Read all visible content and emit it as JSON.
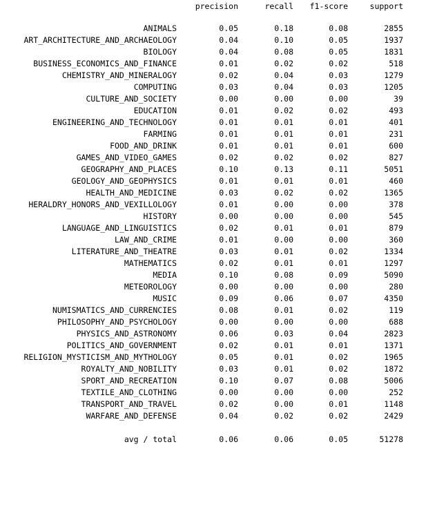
{
  "header": {
    "precision": "precision",
    "recall": "recall",
    "f1": "f1-score",
    "support": "support"
  },
  "rows": [
    {
      "label": "ANIMALS",
      "precision": "0.05",
      "recall": "0.18",
      "f1": "0.08",
      "support": "2855"
    },
    {
      "label": "ART_ARCHITECTURE_AND_ARCHAEOLOGY",
      "precision": "0.04",
      "recall": "0.10",
      "f1": "0.05",
      "support": "1937"
    },
    {
      "label": "BIOLOGY",
      "precision": "0.04",
      "recall": "0.08",
      "f1": "0.05",
      "support": "1831"
    },
    {
      "label": "BUSINESS_ECONOMICS_AND_FINANCE",
      "precision": "0.01",
      "recall": "0.02",
      "f1": "0.02",
      "support": "518"
    },
    {
      "label": "CHEMISTRY_AND_MINERALOGY",
      "precision": "0.02",
      "recall": "0.04",
      "f1": "0.03",
      "support": "1279"
    },
    {
      "label": "COMPUTING",
      "precision": "0.03",
      "recall": "0.04",
      "f1": "0.03",
      "support": "1205"
    },
    {
      "label": "CULTURE_AND_SOCIETY",
      "precision": "0.00",
      "recall": "0.00",
      "f1": "0.00",
      "support": "39"
    },
    {
      "label": "EDUCATION",
      "precision": "0.01",
      "recall": "0.02",
      "f1": "0.02",
      "support": "493"
    },
    {
      "label": "ENGINEERING_AND_TECHNOLOGY",
      "precision": "0.01",
      "recall": "0.01",
      "f1": "0.01",
      "support": "401"
    },
    {
      "label": "FARMING",
      "precision": "0.01",
      "recall": "0.01",
      "f1": "0.01",
      "support": "231"
    },
    {
      "label": "FOOD_AND_DRINK",
      "precision": "0.01",
      "recall": "0.01",
      "f1": "0.01",
      "support": "600"
    },
    {
      "label": "GAMES_AND_VIDEO_GAMES",
      "precision": "0.02",
      "recall": "0.02",
      "f1": "0.02",
      "support": "827"
    },
    {
      "label": "GEOGRAPHY_AND_PLACES",
      "precision": "0.10",
      "recall": "0.13",
      "f1": "0.11",
      "support": "5051"
    },
    {
      "label": "GEOLOGY_AND_GEOPHYSICS",
      "precision": "0.01",
      "recall": "0.01",
      "f1": "0.01",
      "support": "460"
    },
    {
      "label": "HEALTH_AND_MEDICINE",
      "precision": "0.03",
      "recall": "0.02",
      "f1": "0.02",
      "support": "1365"
    },
    {
      "label": "HERALDRY_HONORS_AND_VEXILLOLOGY",
      "precision": "0.01",
      "recall": "0.00",
      "f1": "0.00",
      "support": "378"
    },
    {
      "label": "HISTORY",
      "precision": "0.00",
      "recall": "0.00",
      "f1": "0.00",
      "support": "545"
    },
    {
      "label": "LANGUAGE_AND_LINGUISTICS",
      "precision": "0.02",
      "recall": "0.01",
      "f1": "0.01",
      "support": "879"
    },
    {
      "label": "LAW_AND_CRIME",
      "precision": "0.01",
      "recall": "0.00",
      "f1": "0.00",
      "support": "360"
    },
    {
      "label": "LITERATURE_AND_THEATRE",
      "precision": "0.03",
      "recall": "0.01",
      "f1": "0.02",
      "support": "1334"
    },
    {
      "label": "MATHEMATICS",
      "precision": "0.02",
      "recall": "0.01",
      "f1": "0.01",
      "support": "1297"
    },
    {
      "label": "MEDIA",
      "precision": "0.10",
      "recall": "0.08",
      "f1": "0.09",
      "support": "5090"
    },
    {
      "label": "METEOROLOGY",
      "precision": "0.00",
      "recall": "0.00",
      "f1": "0.00",
      "support": "280"
    },
    {
      "label": "MUSIC",
      "precision": "0.09",
      "recall": "0.06",
      "f1": "0.07",
      "support": "4350"
    },
    {
      "label": "NUMISMATICS_AND_CURRENCIES",
      "precision": "0.08",
      "recall": "0.01",
      "f1": "0.02",
      "support": "119"
    },
    {
      "label": "PHILOSOPHY_AND_PSYCHOLOGY",
      "precision": "0.00",
      "recall": "0.00",
      "f1": "0.00",
      "support": "688"
    },
    {
      "label": "PHYSICS_AND_ASTRONOMY",
      "precision": "0.06",
      "recall": "0.03",
      "f1": "0.04",
      "support": "2823"
    },
    {
      "label": "POLITICS_AND_GOVERNMENT",
      "precision": "0.02",
      "recall": "0.01",
      "f1": "0.01",
      "support": "1371"
    },
    {
      "label": "RELIGION_MYSTICISM_AND_MYTHOLOGY",
      "precision": "0.05",
      "recall": "0.01",
      "f1": "0.02",
      "support": "1965"
    },
    {
      "label": "ROYALTY_AND_NOBILITY",
      "precision": "0.03",
      "recall": "0.01",
      "f1": "0.02",
      "support": "1872"
    },
    {
      "label": "SPORT_AND_RECREATION",
      "precision": "0.10",
      "recall": "0.07",
      "f1": "0.08",
      "support": "5006"
    },
    {
      "label": "TEXTILE_AND_CLOTHING",
      "precision": "0.00",
      "recall": "0.00",
      "f1": "0.00",
      "support": "252"
    },
    {
      "label": "TRANSPORT_AND_TRAVEL",
      "precision": "0.02",
      "recall": "0.00",
      "f1": "0.01",
      "support": "1148"
    },
    {
      "label": "WARFARE_AND_DEFENSE",
      "precision": "0.04",
      "recall": "0.02",
      "f1": "0.02",
      "support": "2429"
    }
  ],
  "total": {
    "label": "avg / total",
    "precision": "0.06",
    "recall": "0.06",
    "f1": "0.05",
    "support": "51278"
  }
}
